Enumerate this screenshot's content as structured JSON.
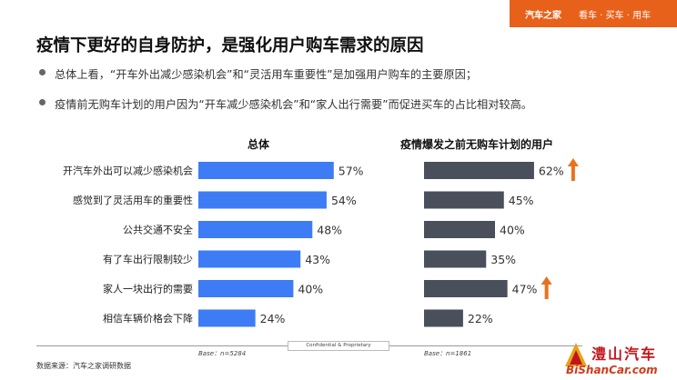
{
  "header": {
    "brand": "汽车之家",
    "slogan": "看车 · 买车 · 用车"
  },
  "title": "疫情下更好的自身防护，是强化用户购车需求的原因",
  "bullets": [
    "总体上看，“开车外出减少感染机会”和“灵活用车重要性”是加强用户购车的主要原因；",
    "疫情前无购车计划的用户因为“开车减少感染机会”和“家人出行需要”而促进买车的占比相对较高。"
  ],
  "chart_data": {
    "type": "bar",
    "orientation": "horizontal",
    "categories": [
      "开汽车外出可以减少感染机会",
      "感觉到了灵活用车的重要性",
      "公共交通不安全",
      "有了车出行限制较少",
      "家人一块出行的需要",
      "相信车辆价格会下降"
    ],
    "series": [
      {
        "name": "总体",
        "values": [
          57,
          54,
          48,
          43,
          40,
          24
        ],
        "labels": [
          "57%",
          "54%",
          "48%",
          "43%",
          "40%",
          "24%"
        ],
        "color": "#3d7cf4",
        "base": "Base：n=5284"
      },
      {
        "name": "疫情爆发之前无购车计划的用户",
        "values": [
          62,
          45,
          40,
          35,
          47,
          22
        ],
        "labels": [
          "62%",
          "45%",
          "40%",
          "35%",
          "47%",
          "22%"
        ],
        "color": "#4a4f5c",
        "base": "Base：n=1861",
        "highlight_up": [
          0,
          4
        ],
        "highlight_color": "#e8731f"
      }
    ],
    "xlim": [
      0,
      100
    ]
  },
  "confidential": "Confidential & Proprietary",
  "source": "数据来源：汽车之家调研数据",
  "watermark": {
    "cn": "澧山汽车",
    "en": "BiShanCar.com"
  }
}
